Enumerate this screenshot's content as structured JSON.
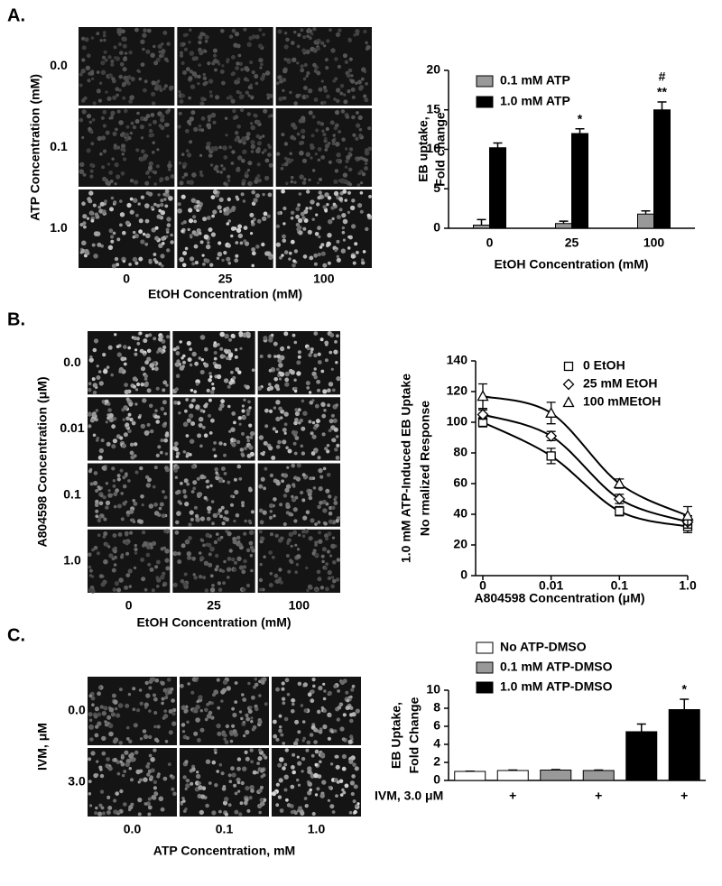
{
  "image_panels": [
    {
      "label": "A.",
      "row_title": "ATP Concentration (mM)",
      "row_labels": [
        "0.0",
        "0.1",
        "1.0"
      ],
      "col_labels": [
        "0",
        "25",
        "100"
      ],
      "col_title": "EtOH Concentration (mM)"
    },
    {
      "label": "B.",
      "row_title": "A804598 Concentration (μM)",
      "row_labels": [
        "0.0",
        "0.01",
        "0.1",
        "1.0"
      ],
      "col_labels": [
        "0",
        "25",
        "100"
      ],
      "col_title": "EtOH Concentration (mM)"
    },
    {
      "label": "C.",
      "row_title": "IVM, μM",
      "row_labels": [
        "0.0",
        "3.0"
      ],
      "col_labels": [
        "0.0",
        "0.1",
        "1.0"
      ],
      "col_title": "ATP Concentration, mM"
    }
  ],
  "chart_data": [
    {
      "type": "bar",
      "ylabel": [
        "EB uptake,",
        "Fold change"
      ],
      "xlabel": "EtOH Concentration (mM)",
      "categories": [
        "0",
        "25",
        "100"
      ],
      "series": [
        {
          "name": "0.1 mM ATP",
          "color": "#999999",
          "values": [
            0.4,
            0.6,
            1.8
          ],
          "errors": [
            0.7,
            0.3,
            0.4
          ],
          "annotations": [
            [],
            [],
            []
          ]
        },
        {
          "name": "1.0 mM ATP",
          "color": "#000000",
          "values": [
            10.2,
            12.0,
            15.0
          ],
          "errors": [
            0.6,
            0.6,
            1.0
          ],
          "annotations": [
            [],
            [
              "*"
            ],
            [
              "#",
              "**"
            ]
          ]
        }
      ],
      "ylim": [
        0,
        20
      ],
      "yticks": [
        0,
        5,
        10,
        15,
        20
      ]
    },
    {
      "type": "line",
      "ylabel": [
        "1.0 mM ATP-Induced EB Uptake",
        "No rmalized Response"
      ],
      "xlabel": "A804598 Concentration (μM)",
      "categories": [
        "0",
        "0.01",
        "0.1",
        "1.0"
      ],
      "series": [
        {
          "name": "0 EtOH",
          "color": "#000000",
          "marker": "square",
          "values": [
            100,
            78,
            42,
            32
          ],
          "errors": [
            3,
            5,
            3,
            4
          ]
        },
        {
          "name": "25 mM EtOH",
          "color": "#000000",
          "marker": "diamond",
          "values": [
            105,
            91,
            50,
            35
          ],
          "errors": [
            3,
            3,
            3,
            4
          ]
        },
        {
          "name": "100  mMEtOH",
          "color": "#000000",
          "marker": "triangle",
          "values": [
            117,
            106,
            60,
            39
          ],
          "errors": [
            8,
            7,
            3,
            6
          ]
        }
      ],
      "ylim": [
        0,
        140
      ],
      "yticks": [
        0,
        20,
        40,
        60,
        80,
        100,
        120,
        140
      ]
    },
    {
      "type": "bar",
      "ylabel": [
        "EB Uptake,",
        "Fold  Change"
      ],
      "x_row_label": "IVM,  3.0 μM",
      "categories": [
        null,
        "+",
        null,
        "+",
        null,
        "+"
      ],
      "series": [
        {
          "name": "No ATP-DMSO",
          "color": "#ffffff",
          "values": [
            1.0,
            1.1,
            null,
            null,
            null,
            null
          ],
          "errors": [
            0.02,
            0.05,
            null,
            null,
            null,
            null
          ],
          "annotations": [
            [],
            [],
            [],
            [],
            [],
            []
          ]
        },
        {
          "name": "0.1 mM ATP-DMSO",
          "color": "#999999",
          "values": [
            null,
            null,
            1.15,
            1.1,
            null,
            null
          ],
          "errors": [
            null,
            null,
            0.05,
            0.05,
            null,
            null
          ],
          "annotations": [
            [],
            [],
            [],
            [],
            [],
            []
          ]
        },
        {
          "name": "1.0 mM ATP-DMSO",
          "color": "#000000",
          "values": [
            null,
            null,
            null,
            null,
            5.4,
            7.85
          ],
          "errors": [
            null,
            null,
            null,
            null,
            0.85,
            1.15
          ],
          "annotations": [
            [],
            [],
            [],
            [],
            [],
            [
              "*"
            ]
          ]
        }
      ],
      "ylim": [
        0,
        10
      ],
      "yticks": [
        0,
        2,
        4,
        6,
        8,
        10
      ]
    }
  ]
}
